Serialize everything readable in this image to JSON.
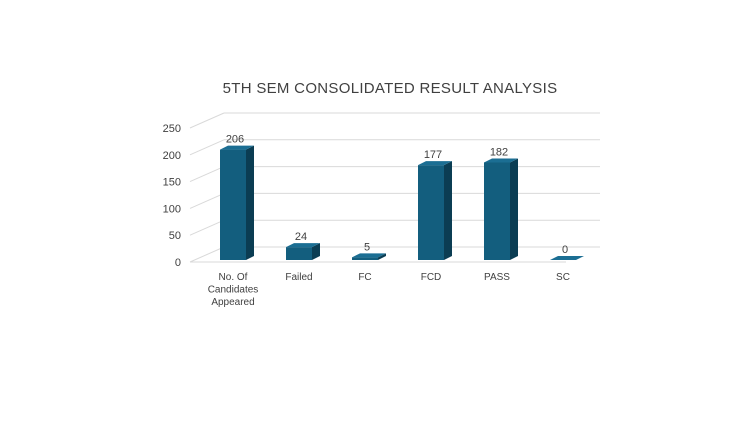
{
  "chart_data": {
    "type": "bar",
    "title": "5TH SEM CONSOLIDATED RESULT ANALYSIS",
    "categories": [
      [
        "No. Of",
        "Candidates",
        "Appeared"
      ],
      [
        "Failed"
      ],
      [
        "FC"
      ],
      [
        "FCD"
      ],
      [
        "PASS"
      ],
      [
        "SC"
      ]
    ],
    "values": [
      206,
      24,
      5,
      177,
      182,
      0
    ],
    "ylim": [
      0,
      250
    ],
    "yticks": [
      0,
      50,
      100,
      150,
      200,
      250
    ],
    "grid": true,
    "legend": "none",
    "colors": {
      "front": "#135E7E",
      "side": "#0B3D53",
      "top": "#1B6E93",
      "grid": "#D9D9D9",
      "floor": "#D9D9D9"
    }
  }
}
